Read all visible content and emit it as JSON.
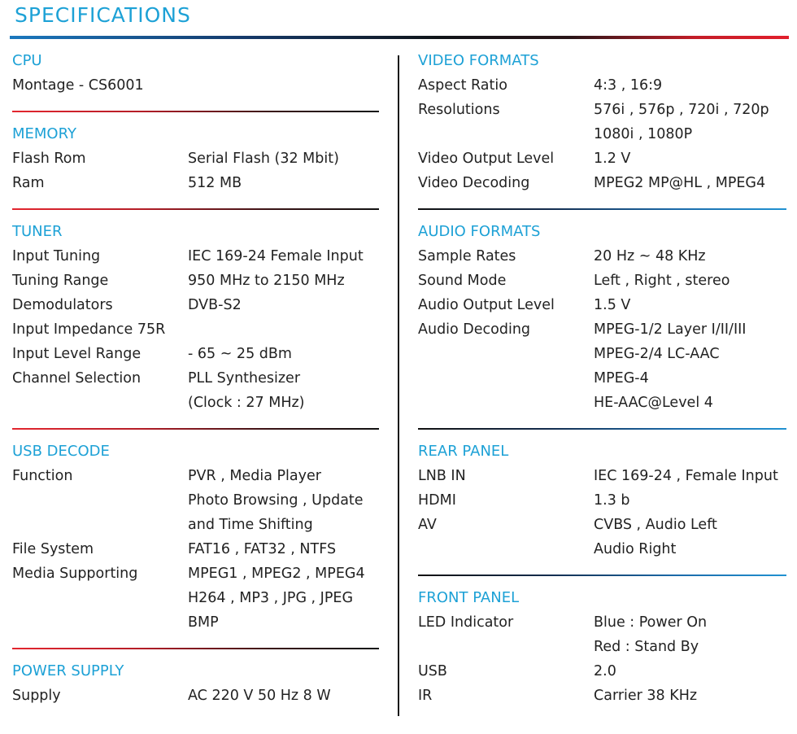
{
  "page_title": "SPECIFICATIONS",
  "colors": {
    "accent": "#1da1d6",
    "red": "#e21f2c",
    "blue": "#1b78be",
    "text": "#222222"
  },
  "left_sections": [
    {
      "title": "CPU",
      "rows": [
        {
          "label": "Montage - CS6001",
          "values": []
        }
      ]
    },
    {
      "title": "MEMORY",
      "rows": [
        {
          "label": "Flash Rom",
          "values": [
            "Serial Flash (32 Mbit)"
          ]
        },
        {
          "label": "Ram",
          "values": [
            "512 MB"
          ]
        }
      ]
    },
    {
      "title": "TUNER",
      "rows": [
        {
          "label": "Input Tuning",
          "values": [
            "IEC 169-24 Female Input"
          ]
        },
        {
          "label": "Tuning Range",
          "values": [
            "950 MHz to 2150 MHz"
          ]
        },
        {
          "label": "Demodulators",
          "values": [
            "DVB-S2"
          ]
        },
        {
          "label": "Input Impedance 75R",
          "values": []
        },
        {
          "label": "Input Level Range",
          "values": [
            "- 65 ~ 25 dBm"
          ]
        },
        {
          "label": "Channel Selection",
          "values": [
            "PLL Synthesizer",
            "(Clock : 27 MHz)"
          ]
        }
      ]
    },
    {
      "title": "USB DECODE",
      "rows": [
        {
          "label": "Function",
          "values": [
            "PVR , Media Player",
            "Photo Browsing , Update",
            "and Time Shifting"
          ]
        },
        {
          "label": "File System",
          "values": [
            "FAT16 , FAT32 , NTFS"
          ]
        },
        {
          "label": "Media Supporting",
          "values": [
            "MPEG1 , MPEG2 , MPEG4",
            "H264 , MP3 , JPG , JPEG",
            "BMP"
          ]
        }
      ]
    },
    {
      "title": "POWER SUPPLY",
      "rows": [
        {
          "label": "Supply",
          "values": [
            "AC 220 V 50 Hz 8 W"
          ]
        }
      ]
    }
  ],
  "right_sections": [
    {
      "title": "VIDEO FORMATS",
      "rows": [
        {
          "label": "Aspect Ratio",
          "values": [
            "4:3 , 16:9"
          ]
        },
        {
          "label": "Resolutions",
          "values": [
            "576i , 576p , 720i , 720p",
            "1080i , 1080P"
          ]
        },
        {
          "label": "Video Output Level",
          "values": [
            "1.2 V"
          ]
        },
        {
          "label": "Video Decoding",
          "values": [
            "MPEG2 MP@HL , MPEG4"
          ]
        }
      ]
    },
    {
      "title": "AUDIO FORMATS",
      "rows": [
        {
          "label": "Sample Rates",
          "values": [
            "20 Hz ~ 48 KHz"
          ]
        },
        {
          "label": "Sound Mode",
          "values": [
            "Left , Right , stereo"
          ]
        },
        {
          "label": "Audio Output Level",
          "values": [
            "1.5 V"
          ]
        },
        {
          "label": "Audio Decoding",
          "values": [
            "MPEG-1/2 Layer I/II/III",
            "MPEG-2/4 LC-AAC",
            "MPEG-4",
            "HE-AAC@Level 4"
          ]
        }
      ]
    },
    {
      "title": "REAR PANEL",
      "rows": [
        {
          "label": "LNB IN",
          "values": [
            "IEC 169-24 , Female Input"
          ]
        },
        {
          "label": "HDMI",
          "values": [
            "1.3 b"
          ]
        },
        {
          "label": "AV",
          "values": [
            "CVBS , Audio Left",
            "Audio Right"
          ]
        }
      ]
    },
    {
      "title": "FRONT PANEL",
      "rows": [
        {
          "label": "LED Indicator",
          "values": [
            "Blue : Power On",
            "Red : Stand By"
          ]
        },
        {
          "label": "USB",
          "values": [
            "2.0"
          ]
        },
        {
          "label": "IR",
          "values": [
            "Carrier 38 KHz"
          ]
        }
      ]
    }
  ]
}
